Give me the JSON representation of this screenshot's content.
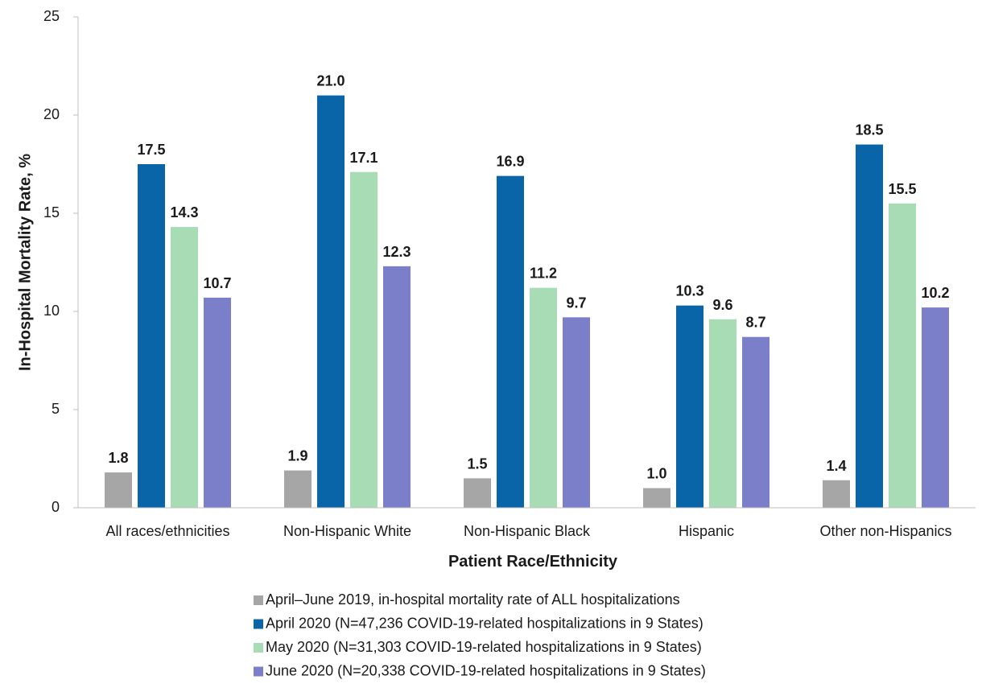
{
  "chart_data": {
    "type": "bar",
    "title": "",
    "xlabel": "Patient Race/Ethnicity",
    "ylabel": "In-Hospital Mortality Rate, %",
    "ylim": [
      0,
      25
    ],
    "yticks": [
      0,
      5,
      10,
      15,
      20,
      25
    ],
    "grid": false,
    "legend_position": "bottom",
    "categories": [
      "All races/ethnicities",
      "Non-Hispanic White",
      "Non-Hispanic Black",
      "Hispanic",
      "Other non-Hispanics"
    ],
    "series": [
      {
        "name": "April–June 2019, in-hospital mortality rate of ALL hospitalizations",
        "color": "#a6a6a6",
        "values": [
          1.8,
          1.9,
          1.5,
          1.0,
          1.4
        ],
        "labels": [
          "1.8",
          "1.9",
          "1.5",
          "1.0",
          "1.4"
        ]
      },
      {
        "name": "April 2020 (N=47,236 COVID-19-related hospitalizations in 9 States)",
        "color": "#0a64a8",
        "values": [
          17.5,
          21.0,
          16.9,
          10.3,
          18.5
        ],
        "labels": [
          "17.5",
          "21.0",
          "16.9",
          "10.3",
          "18.5"
        ]
      },
      {
        "name": "May 2020 (N=31,303 COVID-19-related hospitalizations in 9 States)",
        "color": "#a8dcb4",
        "values": [
          14.3,
          17.1,
          11.2,
          9.6,
          15.5
        ],
        "labels": [
          "14.3",
          "17.1",
          "11.2",
          "9.6",
          "15.5"
        ]
      },
      {
        "name": "June 2020 (N=20,338 COVID-19-related hospitalizations in 9 States)",
        "color": "#7b7ec8",
        "values": [
          10.7,
          12.3,
          9.7,
          8.7,
          10.2
        ],
        "labels": [
          "10.7",
          "12.3",
          "9.7",
          "8.7",
          "10.2"
        ]
      }
    ]
  }
}
